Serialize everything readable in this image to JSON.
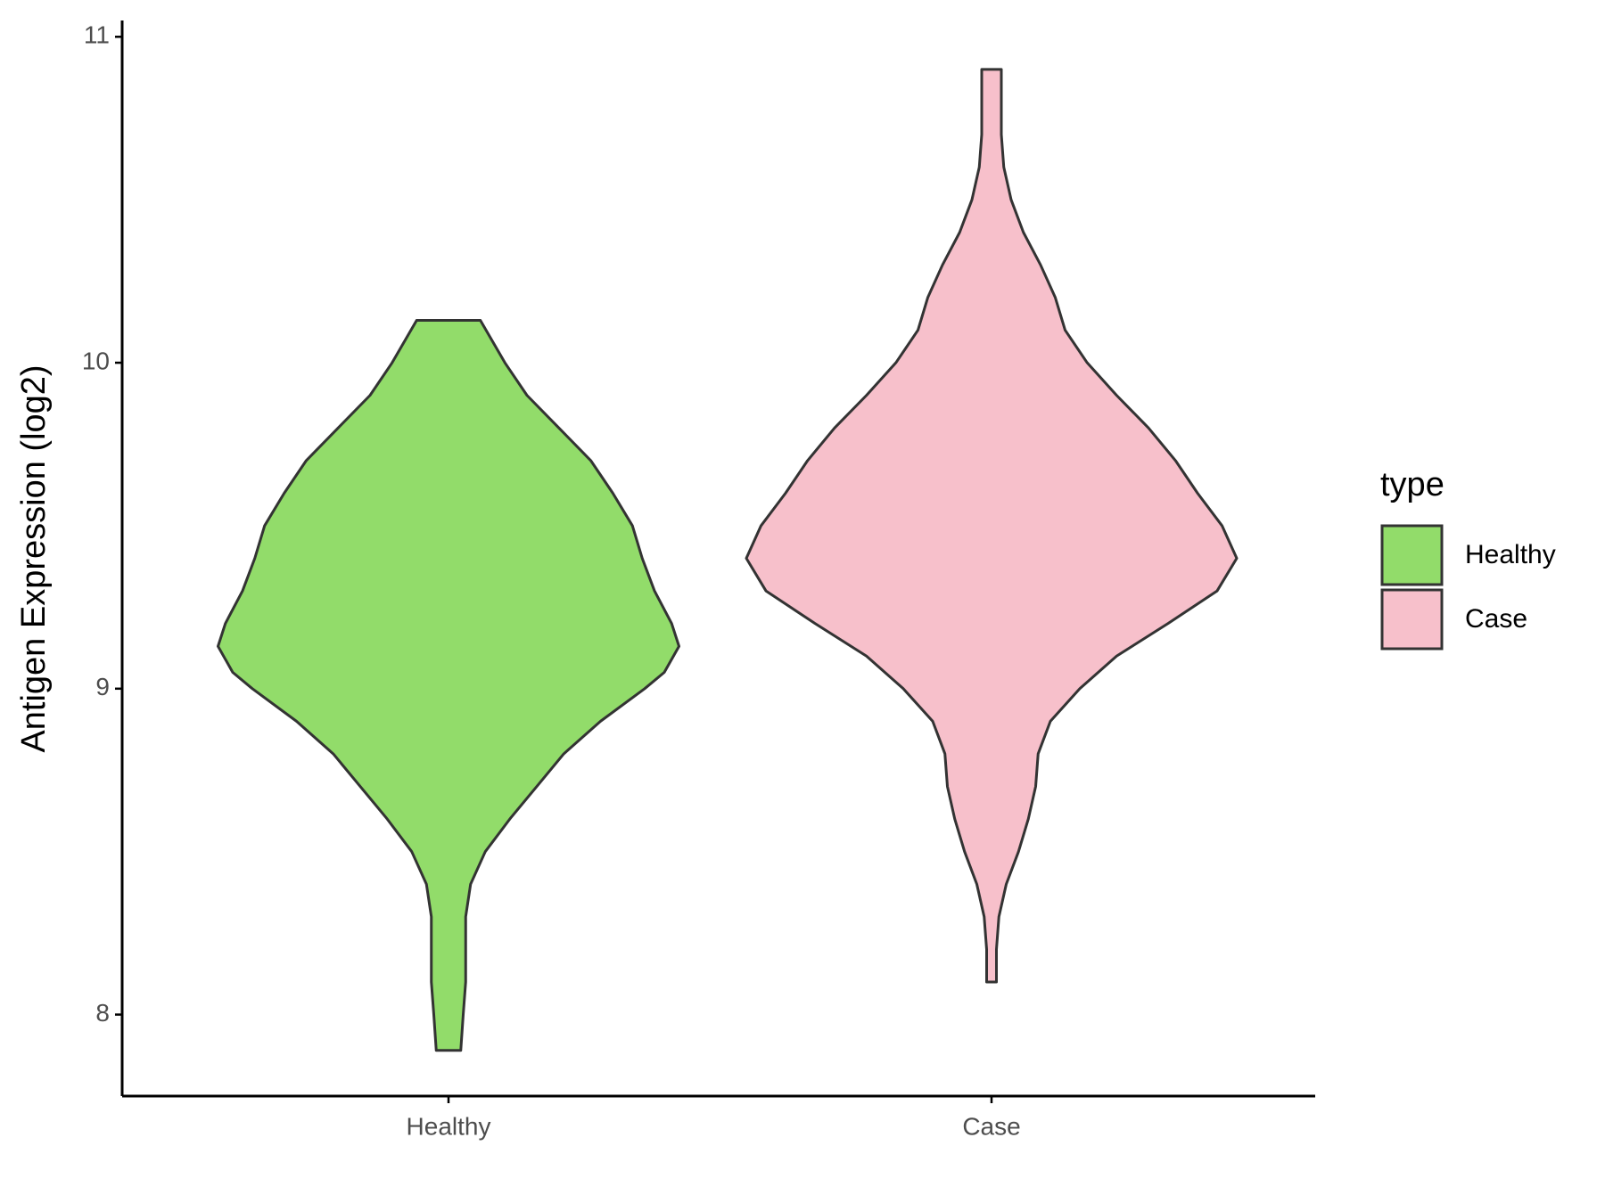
{
  "chart_data": {
    "type": "violin",
    "y_label": "Antigen Expression (log2)",
    "categories": [
      "Healthy",
      "Case"
    ],
    "legend_title": "type",
    "legend_position": "right",
    "ylim": [
      7.75,
      11.05
    ],
    "yticks": [
      8,
      9,
      10,
      11
    ],
    "series": [
      {
        "name": "Healthy",
        "color": "#92dc6a",
        "y": [
          7.89,
          8.0,
          8.1,
          8.2,
          8.3,
          8.4,
          8.5,
          8.6,
          8.7,
          8.8,
          8.9,
          9.0,
          9.05,
          9.13,
          9.2,
          9.3,
          9.4,
          9.5,
          9.6,
          9.7,
          9.8,
          9.9,
          10.0,
          10.13
        ],
        "density": [
          0.05,
          0.06,
          0.07,
          0.07,
          0.07,
          0.09,
          0.15,
          0.25,
          0.36,
          0.47,
          0.62,
          0.8,
          0.88,
          0.94,
          0.91,
          0.84,
          0.79,
          0.75,
          0.67,
          0.58,
          0.45,
          0.32,
          0.23,
          0.13
        ]
      },
      {
        "name": "Case",
        "color": "#f7c0cb",
        "y": [
          8.1,
          8.2,
          8.3,
          8.4,
          8.5,
          8.6,
          8.7,
          8.8,
          8.9,
          9.0,
          9.1,
          9.2,
          9.3,
          9.4,
          9.5,
          9.6,
          9.7,
          9.8,
          9.9,
          10.0,
          10.1,
          10.2,
          10.3,
          10.4,
          10.5,
          10.6,
          10.7,
          10.8,
          10.9
        ],
        "density": [
          0.02,
          0.02,
          0.03,
          0.06,
          0.11,
          0.15,
          0.18,
          0.19,
          0.24,
          0.36,
          0.51,
          0.72,
          0.92,
          1.0,
          0.94,
          0.84,
          0.75,
          0.64,
          0.51,
          0.39,
          0.3,
          0.26,
          0.2,
          0.13,
          0.08,
          0.05,
          0.04,
          0.04,
          0.04
        ]
      }
    ]
  }
}
